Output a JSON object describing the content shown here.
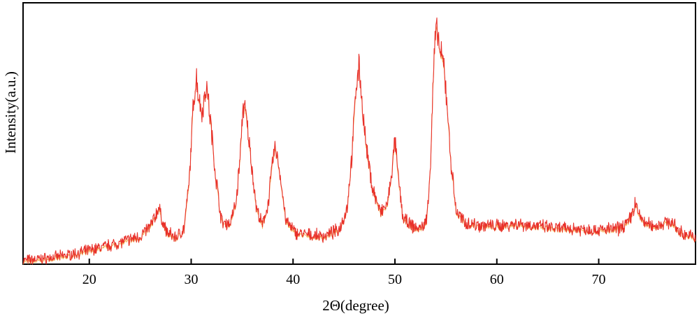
{
  "chart_data": {
    "type": "line",
    "title": "",
    "xlabel": "2Θ(degree)",
    "ylabel": "Intensity(a.u.)",
    "xlim": [
      13.5,
      79.5
    ],
    "ylim": [
      0,
      100
    ],
    "x_ticks": [
      20,
      30,
      40,
      50,
      60,
      70
    ],
    "x_tick_labels": [
      "20",
      "30",
      "40",
      "50",
      "60",
      "70"
    ],
    "y_ticks": [],
    "grid": false,
    "legend": "none",
    "line_color": "#e8302a",
    "line_highlight_color": "#f2a33a",
    "series": [
      {
        "values_note": "",
        "x": [
          13.5,
          15.0,
          17.0,
          19.0,
          21.0,
          23.0,
          25.0,
          26.0,
          26.5,
          26.8,
          27.1,
          27.6,
          28.5,
          29.3,
          29.8,
          30.2,
          30.5,
          30.8,
          31.1,
          31.5,
          31.9,
          32.4,
          33.0,
          33.8,
          34.4,
          34.8,
          35.1,
          35.4,
          35.8,
          36.4,
          37.0,
          37.6,
          38.0,
          38.3,
          38.7,
          39.3,
          40.2,
          41.5,
          43.0,
          44.5,
          45.3,
          45.8,
          46.2,
          46.5,
          46.8,
          47.2,
          47.8,
          48.6,
          49.3,
          49.8,
          50.0,
          50.3,
          50.8,
          51.6,
          52.5,
          53.1,
          53.5,
          53.8,
          54.0,
          54.2,
          54.5,
          54.8,
          55.1,
          55.5,
          56.0,
          56.8,
          58.0,
          60.0,
          62.0,
          64.0,
          66.0,
          68.0,
          70.0,
          72.0,
          73.0,
          73.6,
          74.0,
          74.6,
          75.5,
          77.0,
          78.0,
          79.5
        ],
        "y": [
          1.5,
          2.0,
          3.0,
          4.5,
          6.5,
          8.5,
          11.0,
          15.0,
          19.0,
          22.5,
          18.0,
          12.5,
          10.5,
          14.0,
          32.0,
          62.0,
          74.0,
          64.0,
          60.0,
          71.0,
          56.0,
          35.0,
          16.5,
          16.0,
          24.0,
          42.0,
          63.0,
          58.0,
          44.0,
          22.0,
          15.0,
          25.0,
          41.0,
          46.0,
          36.0,
          17.0,
          12.5,
          11.5,
          11.0,
          13.5,
          22.0,
          44.0,
          71.0,
          78.0,
          62.0,
          45.0,
          30.0,
          20.0,
          24.0,
          40.0,
          49.0,
          35.0,
          18.0,
          15.0,
          14.0,
          17.0,
          40.0,
          78.0,
          91.0,
          90.0,
          82.0,
          78.0,
          64.0,
          40.0,
          21.0,
          16.5,
          15.5,
          15.0,
          16.0,
          15.0,
          14.0,
          14.0,
          13.5,
          14.0,
          17.0,
          24.0,
          19.0,
          16.0,
          15.0,
          17.0,
          12.5,
          10.5
        ]
      }
    ]
  }
}
